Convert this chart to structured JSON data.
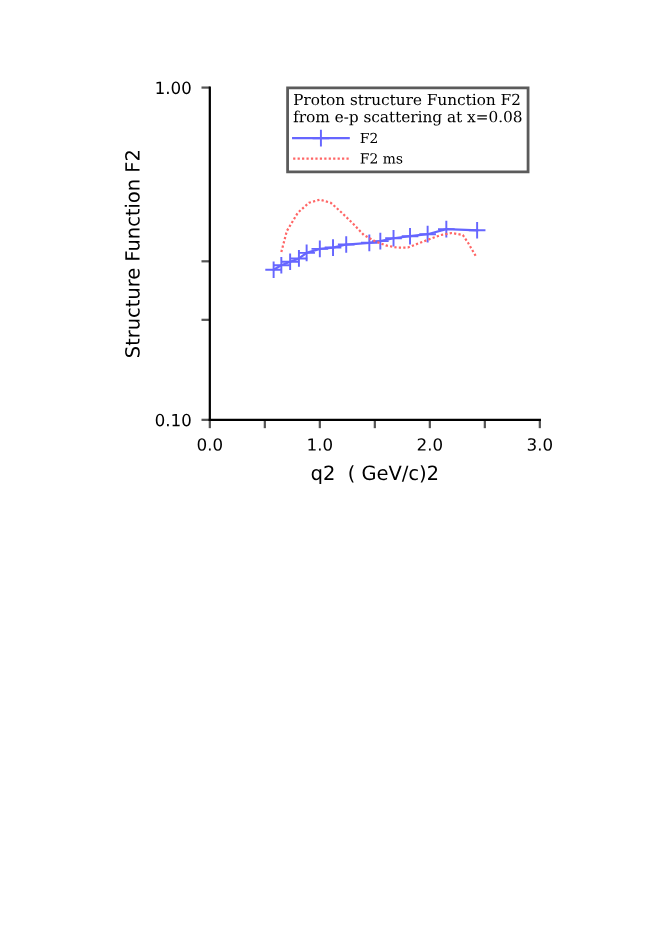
{
  "chart_data": {
    "type": "line",
    "xlabel": "q2  ( GeV/c)2",
    "ylabel": "Structure Function F2",
    "legend_title": "Proton structure Function F2\nfrom e-p scattering at x=0.08",
    "log": "y",
    "legend": "top",
    "grid": false,
    "xlim": [
      0,
      3
    ],
    "ylim": [
      0.1,
      1
    ],
    "xticks": [
      {
        "value": 0,
        "label": "0.0"
      },
      {
        "value": 0.5,
        "label": null
      },
      {
        "value": 1,
        "label": "1.0"
      },
      {
        "value": 1.5,
        "label": null
      },
      {
        "value": 2,
        "label": "2.0"
      },
      {
        "value": 2.5,
        "label": null
      },
      {
        "value": 3,
        "label": "3.0"
      }
    ],
    "yticks": [
      {
        "value": 0.1,
        "label": "0.10"
      },
      {
        "value": 0.2,
        "label": null
      },
      {
        "value": 0.3,
        "label": null
      },
      {
        "value": 1,
        "label": "1.00"
      }
    ],
    "series": [
      {
        "name": "F2",
        "color": "#6666ff",
        "marker": "cross",
        "line_style": "solid",
        "x": [
          0.58,
          0.65,
          0.73,
          0.81,
          0.88,
          1.0,
          1.12,
          1.24,
          1.45,
          1.55,
          1.67,
          1.82,
          1.98,
          2.15,
          2.43
        ],
        "values": [
          0.283,
          0.292,
          0.299,
          0.306,
          0.318,
          0.327,
          0.33,
          0.337,
          0.341,
          0.345,
          0.352,
          0.357,
          0.362,
          0.375,
          0.372
        ]
      },
      {
        "name": "F2 ms",
        "color": "#ff6666",
        "marker": "none",
        "line_style": "dotted",
        "x": [
          0.65,
          0.7,
          0.8,
          0.9,
          1.0,
          1.1,
          1.2,
          1.3,
          1.4,
          1.5,
          1.6,
          1.7,
          1.8,
          1.9,
          2.0,
          2.1,
          2.2,
          2.3,
          2.35,
          2.42
        ],
        "values": [
          0.32,
          0.37,
          0.42,
          0.45,
          0.46,
          0.45,
          0.42,
          0.39,
          0.36,
          0.345,
          0.335,
          0.33,
          0.33,
          0.34,
          0.35,
          0.36,
          0.365,
          0.36,
          0.34,
          0.31
        ]
      }
    ]
  }
}
